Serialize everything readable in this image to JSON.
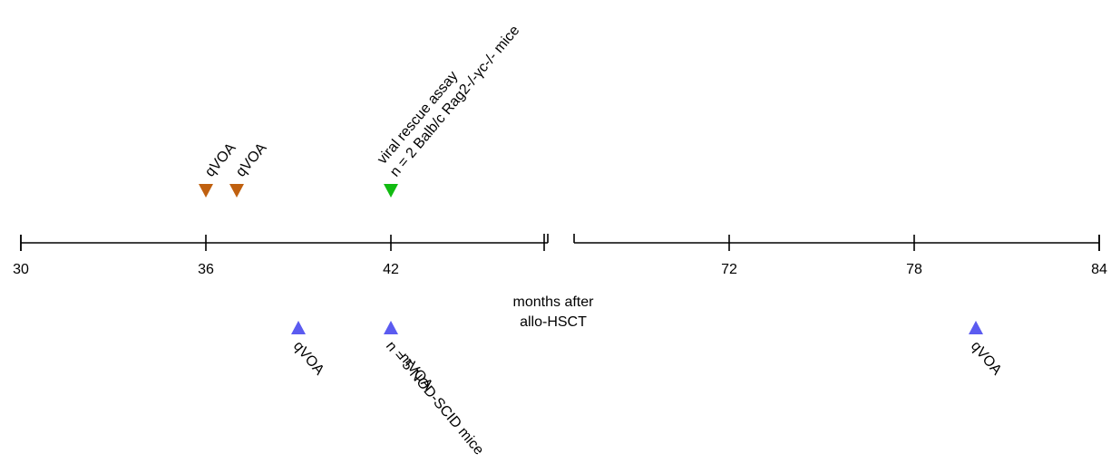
{
  "timeline": {
    "axis_title_line1": "months after",
    "axis_title_line2": "allo-HSCT",
    "segments": [
      {
        "from": 30,
        "to": 45
      },
      {
        "from": 66,
        "to": 84
      }
    ],
    "ticks": [
      {
        "value": 30,
        "label": "30"
      },
      {
        "value": 36,
        "label": "36"
      },
      {
        "value": 42,
        "label": "42"
      },
      {
        "value": 66,
        "label": ""
      },
      {
        "value": 72,
        "label": "72"
      },
      {
        "value": 78,
        "label": "78"
      },
      {
        "value": 84,
        "label": "84"
      }
    ],
    "events_above": [
      {
        "month": 36,
        "type": "qVOA",
        "lines": [
          "qVOA"
        ],
        "color": "#c0600f"
      },
      {
        "month": 37,
        "type": "qVOA",
        "lines": [
          "qVOA"
        ],
        "color": "#c0600f"
      },
      {
        "month": 42,
        "type": "viral rescue assay",
        "lines": [
          "viral rescue assay",
          "n = 2 Balb/c Rag2-/-γc-/- mice"
        ],
        "color": "#11bb11"
      }
    ],
    "events_below": [
      {
        "month": 39,
        "type": "qVOA",
        "lines": [
          "qVOA"
        ],
        "color": "#5b5bf0"
      },
      {
        "month": 42,
        "type": "mVOA",
        "lines": [
          "mVOA",
          "n = 5 NOD-SCID mice"
        ],
        "color": "#5b5bf0"
      },
      {
        "month": 80,
        "type": "qVOA",
        "lines": [
          "qVOA"
        ],
        "color": "#5b5bf0"
      }
    ]
  }
}
